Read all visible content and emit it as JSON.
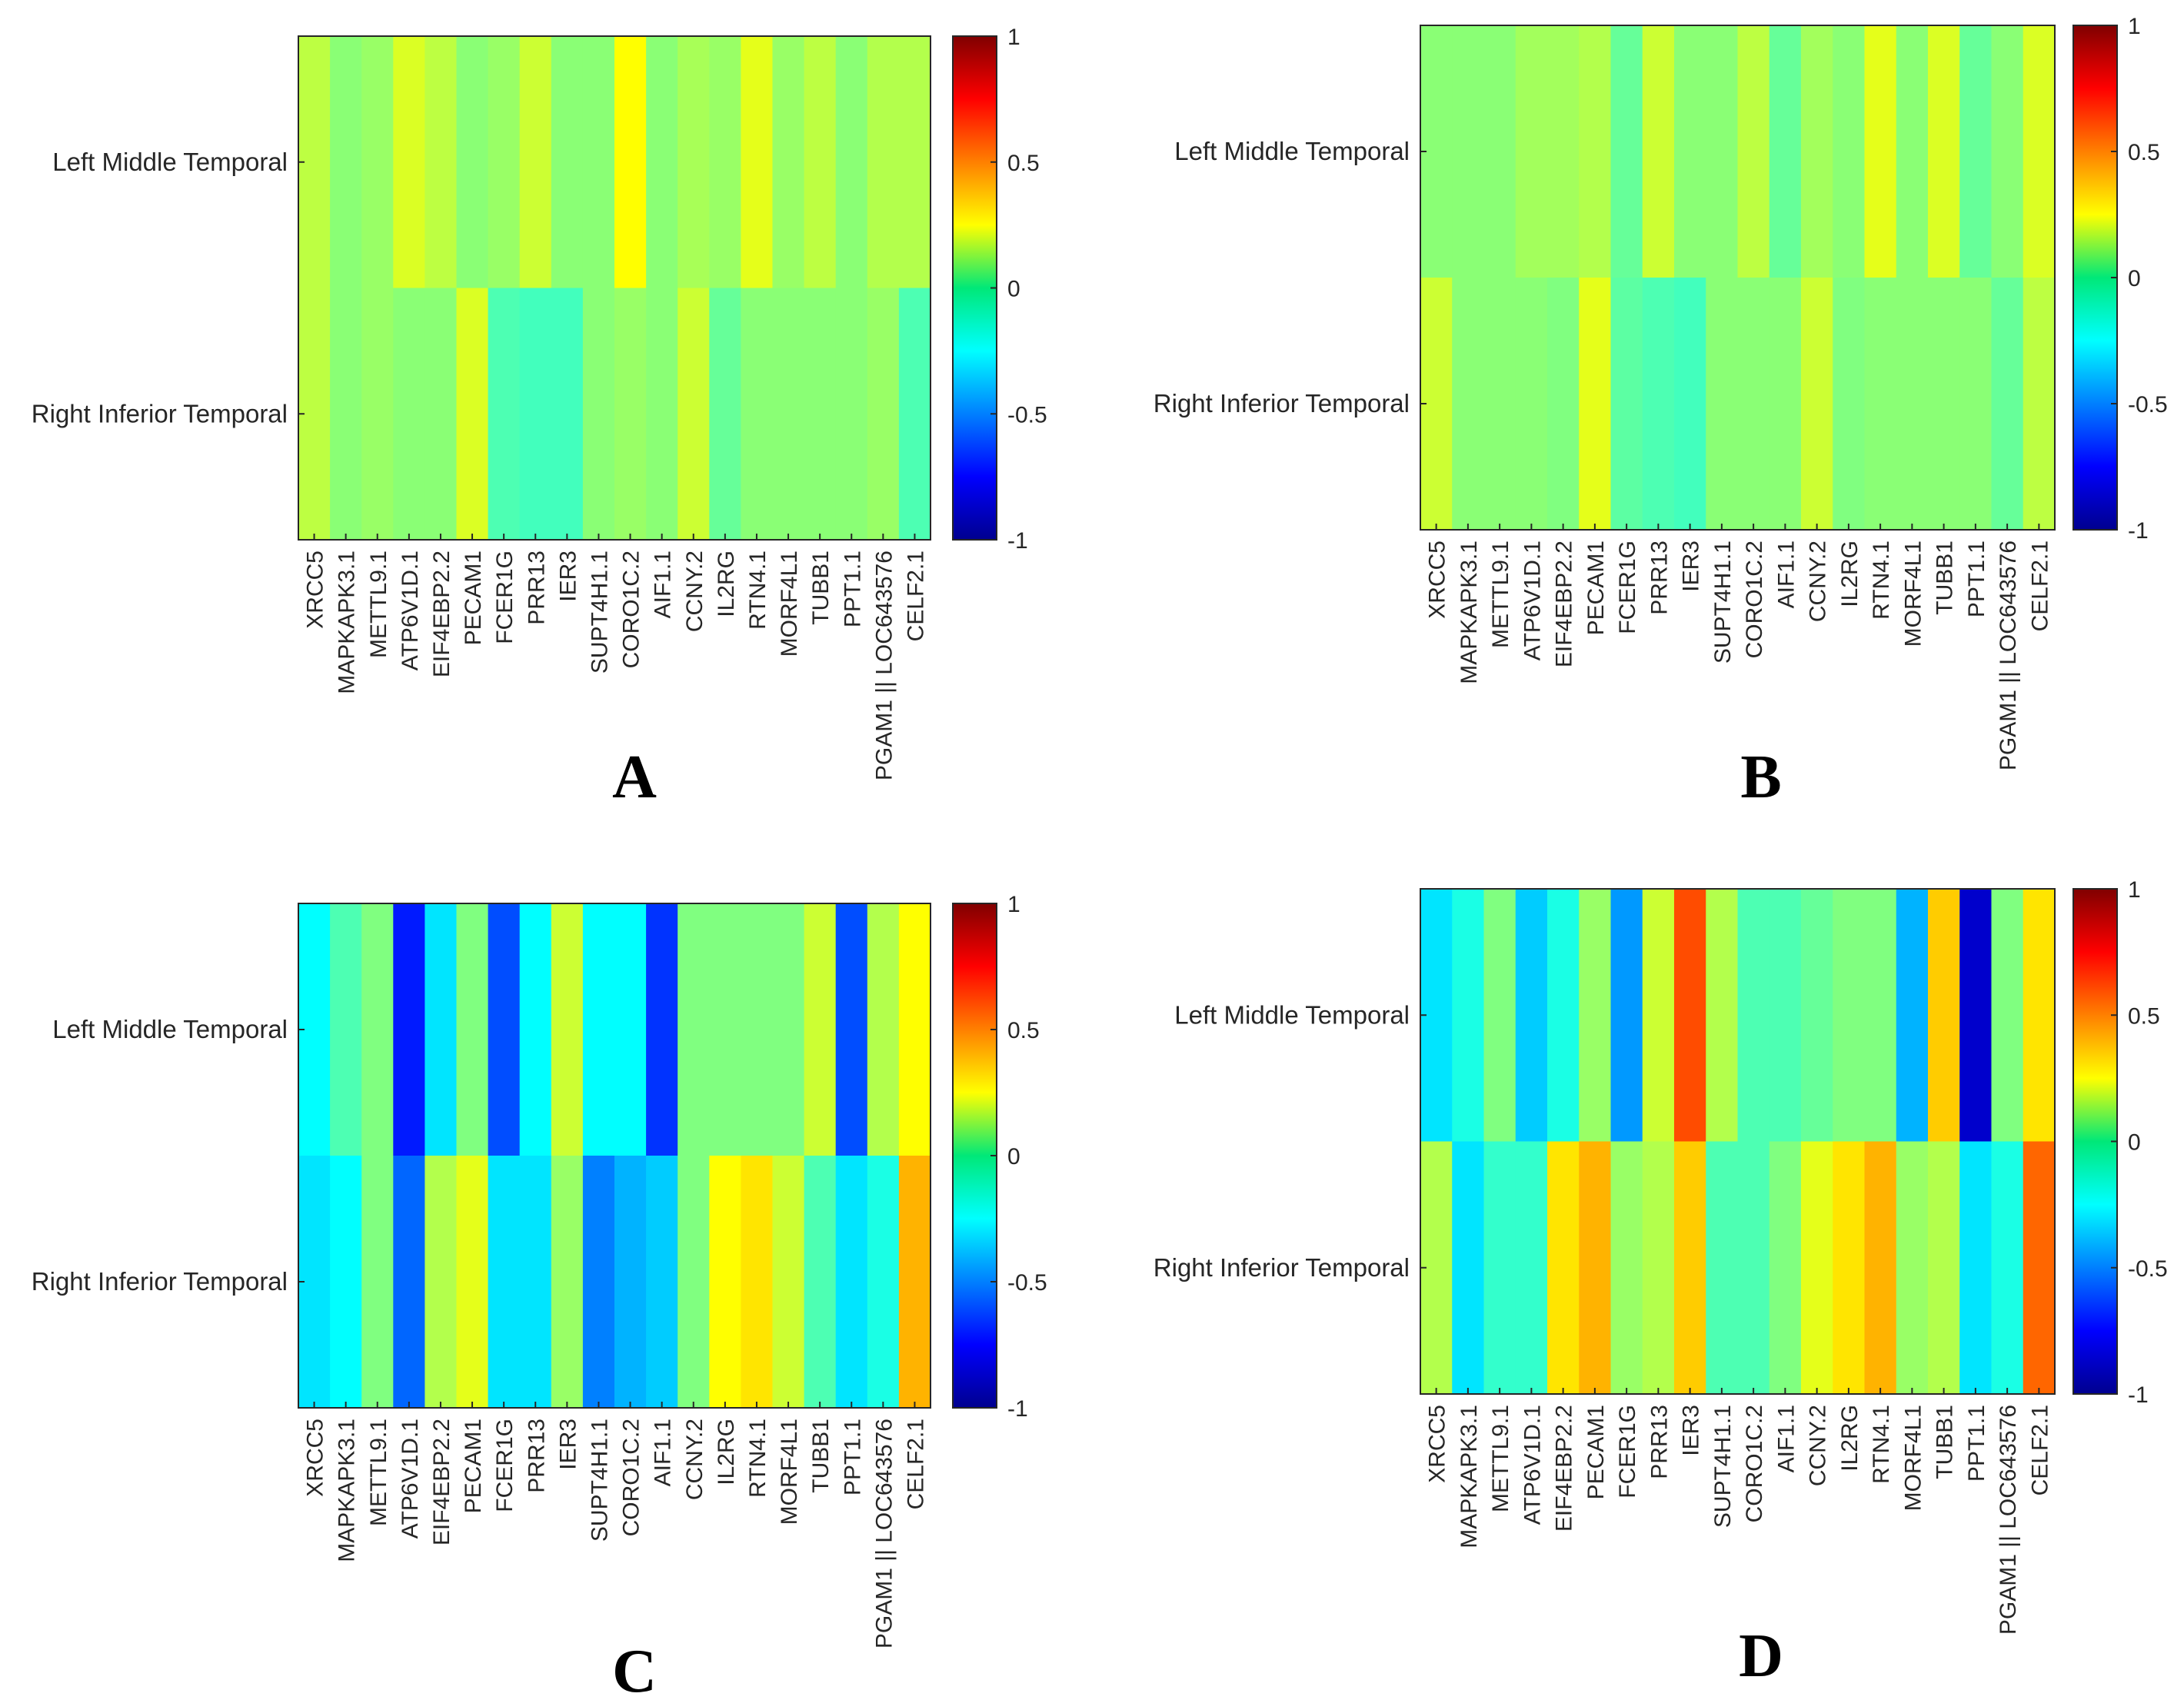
{
  "chart_data": [
    {
      "type": "heatmap",
      "panel_label": "A",
      "rows": [
        "Left Middle Temporal",
        "Right Inferior Temporal"
      ],
      "columns": [
        "XRCC5",
        "MAPKAPK3.1",
        "METTL9.1",
        "ATP6V1D.1",
        "EIF4EBP2.2",
        "PECAM1",
        "FCER1G",
        "PRR13",
        "IER3",
        "SUPT4H1.1",
        "CORO1C.2",
        "AIF1.1",
        "CCNY.2",
        "IL2RG",
        "RTN4.1",
        "MORF4L1",
        "TUBB1",
        "PPT1.1",
        "PGAM1 || LOC643576",
        "CELF2.1"
      ],
      "values": [
        [
          0.12,
          0.02,
          0.05,
          0.18,
          0.12,
          0.02,
          0.05,
          0.15,
          0.02,
          0.02,
          0.25,
          0.02,
          0.08,
          0.05,
          0.2,
          0.05,
          0.12,
          0.02,
          0.1,
          0.1
        ],
        [
          0.12,
          0.02,
          0.05,
          0.02,
          0.02,
          0.18,
          -0.1,
          -0.12,
          -0.12,
          0.02,
          0.05,
          0.02,
          0.15,
          -0.05,
          0.02,
          0.02,
          0.02,
          0.02,
          0.05,
          -0.1
        ]
      ],
      "colorbar": {
        "min": -1,
        "max": 1,
        "ticks": [
          "1",
          "0.5",
          "0",
          "-0.5",
          "-1"
        ]
      }
    },
    {
      "type": "heatmap",
      "panel_label": "B",
      "rows": [
        "Left Middle Temporal",
        "Right Inferior Temporal"
      ],
      "columns": [
        "XRCC5",
        "MAPKAPK3.1",
        "METTL9.1",
        "ATP6V1D.1",
        "EIF4EBP2.2",
        "PECAM1",
        "FCER1G",
        "PRR13",
        "IER3",
        "SUPT4H1.1",
        "CORO1C.2",
        "AIF1.1",
        "CCNY.2",
        "IL2RG",
        "RTN4.1",
        "MORF4L1",
        "TUBB1",
        "PPT1.1",
        "PGAM1 || LOC643576",
        "CELF2.1"
      ],
      "values": [
        [
          0.02,
          0.02,
          0.02,
          0.07,
          0.07,
          0.1,
          -0.05,
          0.15,
          0.02,
          0.02,
          0.12,
          -0.05,
          0.07,
          0.02,
          0.2,
          0.02,
          0.18,
          -0.05,
          0.02,
          0.18
        ],
        [
          0.15,
          0.02,
          0.02,
          0.02,
          0.0,
          0.2,
          -0.07,
          -0.1,
          -0.12,
          0.02,
          0.02,
          0.02,
          0.15,
          0.0,
          0.02,
          0.02,
          0.02,
          0.02,
          -0.05,
          0.12
        ]
      ],
      "colorbar": {
        "min": -1,
        "max": 1,
        "ticks": [
          "1",
          "0.5",
          "0",
          "-0.5",
          "-1"
        ]
      }
    },
    {
      "type": "heatmap",
      "panel_label": "C",
      "rows": [
        "Left Middle Temporal",
        "Right Inferior Temporal"
      ],
      "columns": [
        "XRCC5",
        "MAPKAPK3.1",
        "METTL9.1",
        "ATP6V1D.1",
        "EIF4EBP2.2",
        "PECAM1",
        "FCER1G",
        "PRR13",
        "IER3",
        "SUPT4H1.1",
        "CORO1C.2",
        "AIF1.1",
        "CCNY.2",
        "IL2RG",
        "RTN4.1",
        "MORF4L1",
        "TUBB1",
        "PPT1.1",
        "PGAM1 || LOC643576",
        "CELF2.1"
      ],
      "values": [
        [
          -0.25,
          -0.1,
          0.0,
          -0.7,
          -0.3,
          0.0,
          -0.6,
          -0.25,
          0.15,
          -0.25,
          -0.25,
          -0.65,
          0.0,
          0.0,
          0.0,
          0.0,
          0.15,
          -0.6,
          0.1,
          0.25
        ],
        [
          -0.3,
          -0.25,
          0.0,
          -0.55,
          0.1,
          0.2,
          -0.3,
          -0.3,
          0.05,
          -0.5,
          -0.4,
          -0.35,
          0.0,
          0.25,
          0.3,
          0.15,
          -0.1,
          -0.3,
          -0.2,
          0.4
        ]
      ],
      "colorbar": {
        "min": -1,
        "max": 1,
        "ticks": [
          "1",
          "0.5",
          "0",
          "-0.5",
          "-1"
        ]
      }
    },
    {
      "type": "heatmap",
      "panel_label": "D",
      "rows": [
        "Left Middle Temporal",
        "Right Inferior Temporal"
      ],
      "columns": [
        "XRCC5",
        "MAPKAPK3.1",
        "METTL9.1",
        "ATP6V1D.1",
        "EIF4EBP2.2",
        "PECAM1",
        "FCER1G",
        "PRR13",
        "IER3",
        "SUPT4H1.1",
        "CORO1C.2",
        "AIF1.1",
        "CCNY.2",
        "IL2RG",
        "RTN4.1",
        "MORF4L1",
        "TUBB1",
        "PPT1.1",
        "PGAM1 || LOC643576",
        "CELF2.1"
      ],
      "values": [
        [
          -0.3,
          -0.2,
          0.0,
          -0.35,
          -0.2,
          0.05,
          -0.45,
          0.15,
          0.6,
          0.1,
          -0.1,
          -0.1,
          -0.05,
          0.0,
          0.0,
          -0.4,
          0.35,
          -0.85,
          0.0,
          0.3
        ],
        [
          0.1,
          -0.3,
          -0.15,
          -0.15,
          0.3,
          0.4,
          0.05,
          0.1,
          0.35,
          -0.1,
          -0.1,
          0.0,
          0.2,
          0.3,
          0.4,
          0.05,
          0.1,
          -0.3,
          -0.2,
          0.55
        ]
      ],
      "colorbar": {
        "min": -1,
        "max": 1,
        "ticks": [
          "1",
          "0.5",
          "0",
          "-0.5",
          "-1"
        ]
      }
    }
  ]
}
